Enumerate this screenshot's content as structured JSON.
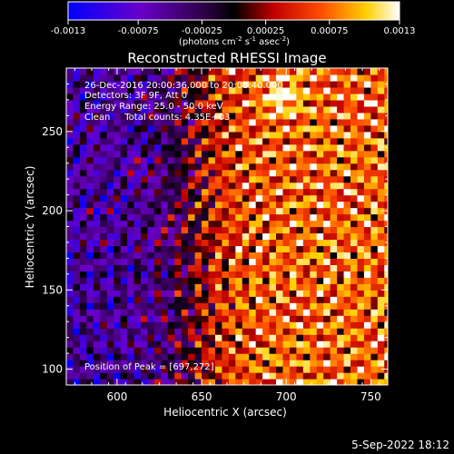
{
  "chart_data": {
    "type": "heatmap",
    "title": "Reconstructed RHESSI Image",
    "xlabel": "Heliocentric X (arcsec)",
    "ylabel": "Heliocentric Y (arcsec)",
    "xlim": [
      570,
      760
    ],
    "ylim": [
      90,
      290
    ],
    "x_ticks": [
      600,
      650,
      700,
      750
    ],
    "y_ticks": [
      100,
      150,
      200,
      250
    ],
    "colorbar": {
      "min": -0.0013,
      "max": 0.0013,
      "ticks": [
        "-0.0013",
        "-0.00075",
        "-0.00025",
        "0.00025",
        "0.00075",
        "0.0013"
      ],
      "units_prefix": "(photons cm",
      "units_exp1": "-2",
      "units_mid": " s",
      "units_exp2": "-1",
      "units_mid2": " asec",
      "units_exp3": "-2",
      "units_suffix": ")"
    },
    "info_lines": [
      "26-Dec-2016 20:00:36.000 to 20:08:40.000",
      "Detectors: 3F 9F, Att 0",
      "Energy Range: 25.0 - 50.0 keV",
      "Clean     Total counts: 4.35E+03"
    ],
    "peak_label": "Position of Peak = [697,272]",
    "peak": [
      697,
      272
    ],
    "timestamp": "5-Sep-2022 18:12",
    "colors": {
      "negative_end": "#0000ff",
      "zero": "#000000",
      "positive_mid": "#ff3000",
      "positive_end": "#ffffff"
    }
  }
}
